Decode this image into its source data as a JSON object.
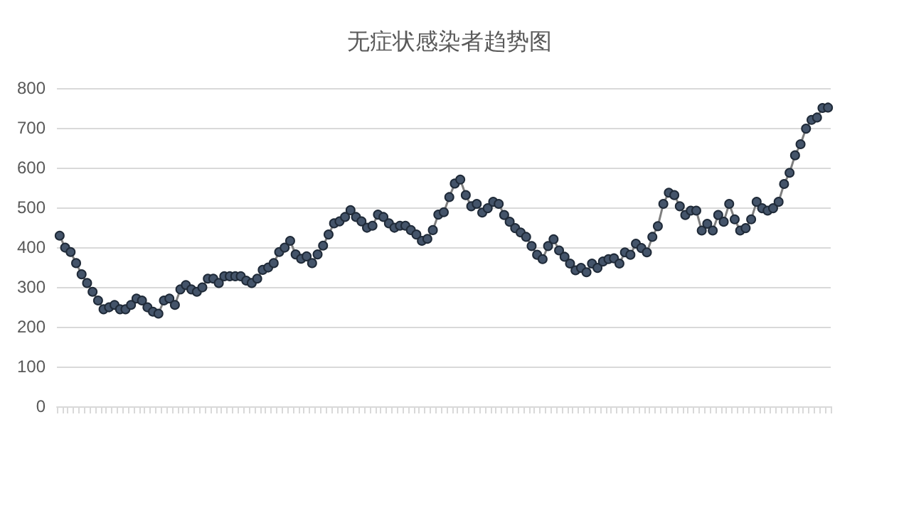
{
  "chart_data": {
    "type": "line",
    "title": "无症状感染者趋势图",
    "categories": [
      null,
      null,
      null,
      null,
      null,
      null,
      null,
      null,
      null,
      null,
      null,
      null,
      null,
      null,
      null,
      null,
      null,
      null,
      null,
      null,
      null,
      null,
      null,
      null,
      null,
      null,
      null,
      null,
      null,
      null,
      null,
      null,
      null,
      null,
      null,
      null,
      null,
      null,
      null,
      null,
      null,
      null,
      null,
      null,
      null,
      null,
      null,
      null,
      null,
      null,
      null,
      null,
      null,
      null,
      null,
      null,
      null,
      null,
      null,
      null,
      null,
      null,
      null,
      null,
      null,
      null,
      null,
      null,
      null,
      null,
      null,
      null,
      null,
      null,
      null,
      null,
      null,
      null,
      null,
      null,
      null,
      null,
      null,
      null,
      null,
      null,
      null,
      null,
      null,
      null,
      null,
      null,
      null,
      null,
      null,
      null,
      null,
      null,
      null,
      null,
      null,
      null,
      null,
      null,
      null,
      null,
      null,
      null,
      null,
      null,
      null,
      null,
      null,
      null,
      null,
      null,
      null,
      null,
      null,
      null,
      null,
      null,
      null,
      null,
      null,
      null,
      null,
      null,
      null,
      null,
      null,
      null,
      null,
      null,
      null,
      null,
      null,
      null,
      null,
      null,
      null
    ],
    "series": [
      {
        "color": "#44546a",
        "values": [
          429,
          399,
          388,
          360,
          332,
          310,
          288,
          266,
          244,
          249,
          255,
          244,
          244,
          255,
          271,
          266,
          249,
          238,
          233,
          266,
          271,
          255,
          294,
          305,
          294,
          288,
          299,
          321,
          321,
          310,
          327,
          327,
          327,
          327,
          316,
          310,
          321,
          343,
          349,
          360,
          388,
          399,
          416,
          382,
          371,
          377,
          360,
          382,
          404,
          432,
          460,
          465,
          476,
          493,
          476,
          465,
          449,
          454,
          482,
          476,
          460,
          449,
          454,
          454,
          443,
          432,
          416,
          421,
          443,
          482,
          488,
          526,
          560,
          570,
          531,
          503,
          509,
          487,
          498,
          514,
          509,
          481,
          464,
          448,
          437,
          426,
          403,
          381,
          370,
          403,
          420,
          392,
          376,
          359,
          342,
          348,
          337,
          359,
          348,
          364,
          370,
          372,
          359,
          387,
          381,
          409,
          398,
          387,
          426,
          453,
          509,
          537,
          531,
          503,
          481,
          492,
          492,
          442,
          459,
          442,
          481,
          464,
          509,
          470,
          442,
          448,
          470,
          514,
          498,
          492,
          498,
          514,
          559,
          587,
          631,
          659,
          698,
          720,
          726,
          750,
          751
        ]
      }
    ],
    "ylim": [
      0,
      800
    ],
    "yticks": [
      0,
      100,
      200,
      300,
      400,
      500,
      600,
      700,
      800
    ],
    "grid": "y",
    "marker": "circle"
  }
}
